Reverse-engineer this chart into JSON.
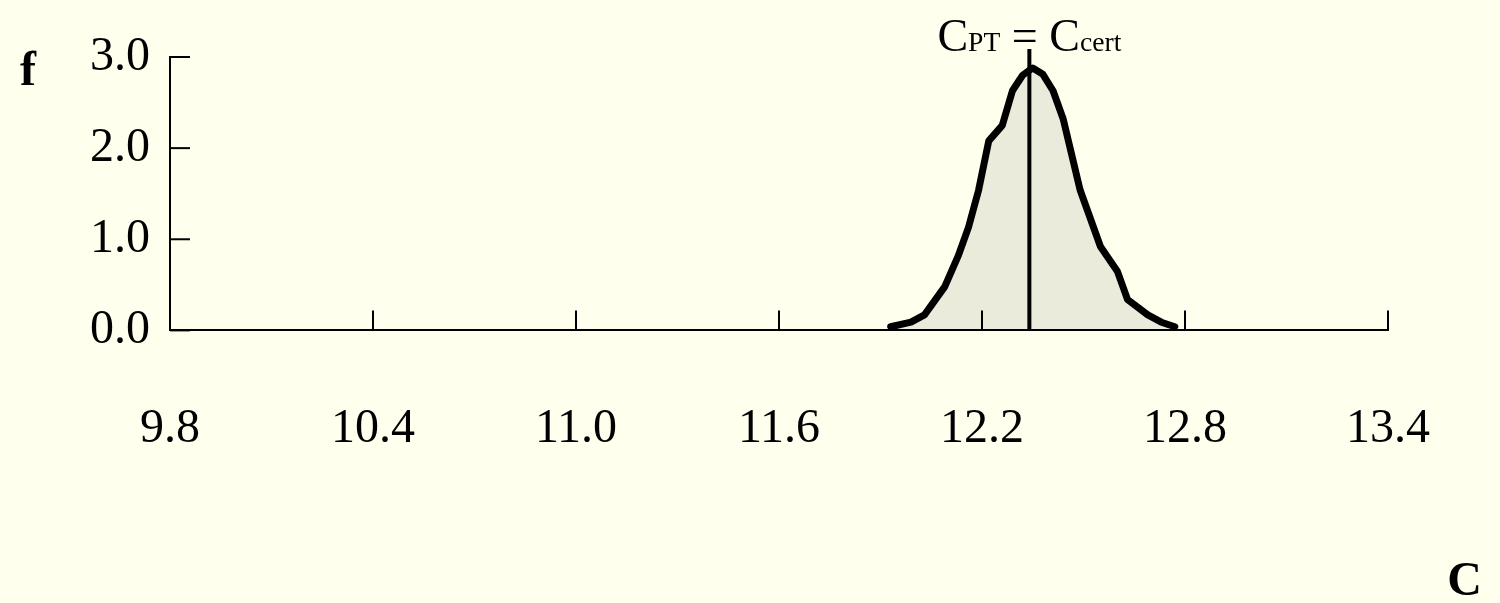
{
  "chart_data": {
    "type": "area",
    "xlabel": "C",
    "ylabel": "f",
    "x": [
      11.93,
      11.99,
      12.03,
      12.09,
      12.13,
      12.16,
      12.19,
      12.22,
      12.26,
      12.29,
      12.32,
      12.35,
      12.38,
      12.41,
      12.44,
      12.49,
      12.55,
      12.6,
      12.63,
      12.69,
      12.73,
      12.77
    ],
    "series": [
      {
        "color": "#000000",
        "values": [
          0.04,
          0.09,
          0.17,
          0.48,
          0.82,
          1.13,
          1.54,
          2.08,
          2.25,
          2.63,
          2.8,
          2.88,
          2.81,
          2.63,
          2.32,
          1.54,
          0.92,
          0.65,
          0.34,
          0.17,
          0.09,
          0.04
        ]
      }
    ],
    "xlim": [
      9.8,
      13.4
    ],
    "xticks": [
      9.8,
      10.4,
      {
        "value": 11,
        "label": "11.0"
      },
      11.6,
      12.2,
      12.8,
      13.4
    ],
    "ylim": [
      0,
      3
    ],
    "yticks": [
      {
        "value": 0,
        "label": "0.0"
      },
      {
        "value": 1,
        "label": "1.0"
      },
      {
        "value": 2,
        "label": "2.0"
      },
      {
        "value": 3,
        "label": "3.0"
      }
    ],
    "ref_lines": [
      {
        "axis": "x",
        "value": 12.34,
        "label": "C$_{PT}$ = C$_{cert}$",
        "color": "#000000"
      }
    ],
    "grid": false,
    "legend": false,
    "marker": "none",
    "line_style": "solid"
  }
}
